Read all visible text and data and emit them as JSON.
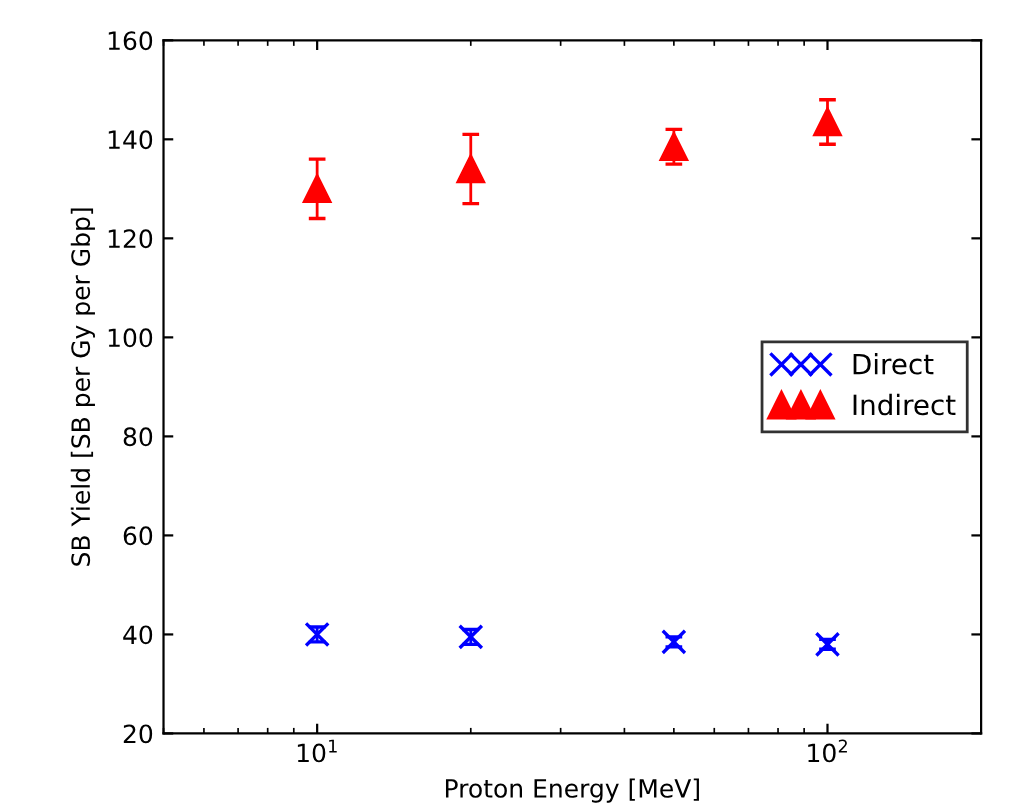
{
  "chart_data": {
    "type": "scatter",
    "xlabel": "Proton Energy [MeV]",
    "ylabel": "SB Yield [SB per Gy per Gbp]",
    "x": [
      10,
      20,
      50,
      100
    ],
    "series": [
      {
        "name": "Direct",
        "color": "#0000ff",
        "marker": "cross",
        "values": [
          40,
          39.5,
          38.5,
          38
        ],
        "errors": [
          1.5,
          1.5,
          1,
          1
        ]
      },
      {
        "name": "Indirect",
        "color": "#ff0000",
        "marker": "triangle",
        "values": [
          130,
          134,
          138.5,
          143.5
        ],
        "errors": [
          6,
          7,
          3.5,
          4.5
        ]
      }
    ],
    "log": "x",
    "xlim": [
      5,
      200
    ],
    "xticks": [
      {
        "value": 10,
        "label": "10$^{1}$"
      },
      {
        "value": 100,
        "label": "10$^{2}$"
      }
    ],
    "ylim": [
      20,
      160
    ],
    "yticks": [
      20,
      40,
      60,
      80,
      100,
      120,
      140,
      160
    ],
    "grid": false,
    "legend": "right"
  }
}
